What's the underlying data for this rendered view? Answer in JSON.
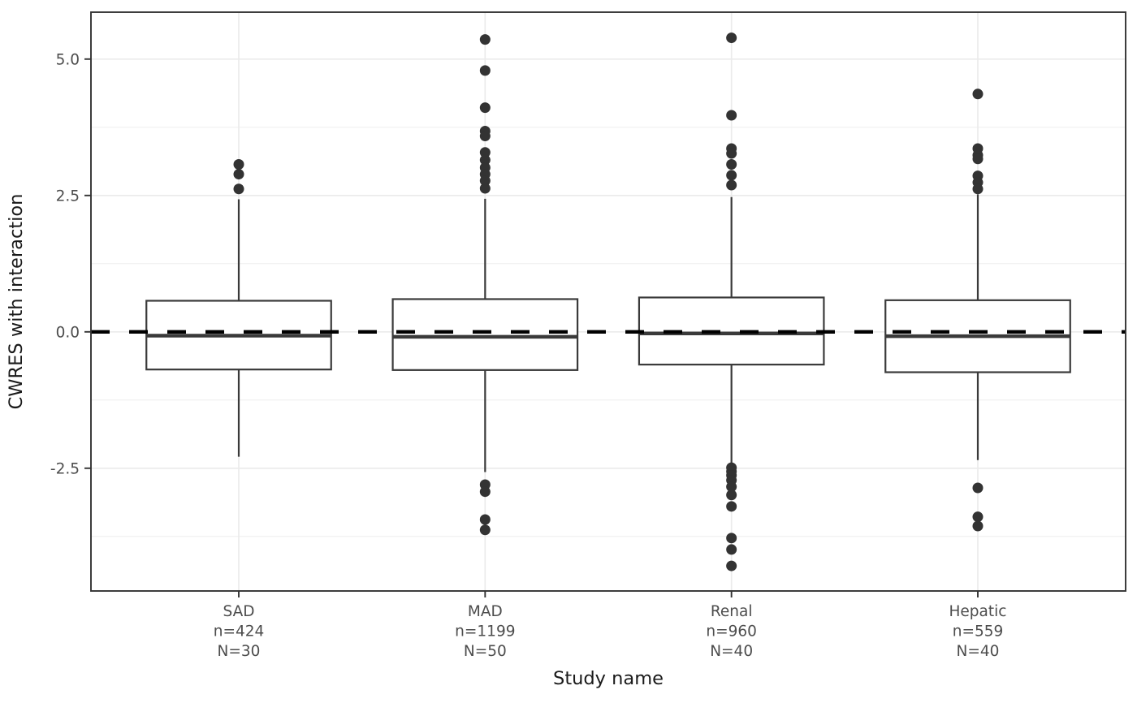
{
  "figure": {
    "background": "#ffffff"
  },
  "colors": {
    "panel_border": "#333333",
    "grid_major": "#ebebeb",
    "grid_minor": "#ebebeb",
    "box_stroke": "#3a3a3a",
    "box_fill": "#ffffff",
    "outlier": "#333333",
    "reference_line": "#000000",
    "tick_label": "#4d4d4d",
    "axis_title": "#1a1a1a",
    "tick_mark": "#333333"
  },
  "chart_data": {
    "type": "boxplot",
    "title": "",
    "xlabel": "Study name",
    "ylabel": "CWRES with interaction",
    "ylim": [
      -4.75,
      5.86
    ],
    "yticks": [
      {
        "value": 5.0,
        "label": "5.0"
      },
      {
        "value": 2.5,
        "label": "2.5"
      },
      {
        "value": 0.0,
        "label": "0.0"
      },
      {
        "value": -2.5,
        "label": "-2.5"
      }
    ],
    "yticks_minor": [
      3.75,
      1.25,
      -1.25,
      -3.75
    ],
    "grid": "on",
    "legend_position": "none",
    "reference_line": {
      "y": 0.0,
      "linetype": "dashed"
    },
    "categories": [
      "SAD",
      "MAD",
      "Renal",
      "Hepatic"
    ],
    "x_tick_labels": [
      {
        "lines": [
          "SAD",
          "n=424",
          "N=30"
        ]
      },
      {
        "lines": [
          "MAD",
          "n=1199",
          "N=50"
        ]
      },
      {
        "lines": [
          "Renal",
          "n=960",
          "N=40"
        ]
      },
      {
        "lines": [
          "Hepatic",
          "n=559",
          "N=40"
        ]
      }
    ],
    "series": [
      {
        "name": "SAD",
        "q1": -0.69,
        "median": -0.07,
        "q3": 0.57,
        "whisker_low": -2.29,
        "whisker_high": 2.43,
        "outliers_high": [
          3.07,
          2.89,
          2.62
        ],
        "outliers_low": []
      },
      {
        "name": "MAD",
        "q1": -0.7,
        "median": -0.09,
        "q3": 0.6,
        "whisker_low": -2.57,
        "whisker_high": 2.44,
        "outliers_high": [
          5.36,
          4.79,
          4.11,
          3.68,
          3.59,
          3.29,
          3.15,
          3.01,
          2.89,
          2.77,
          2.63
        ],
        "outliers_low": [
          -2.8,
          -2.93,
          -3.44,
          -3.63
        ]
      },
      {
        "name": "Renal",
        "q1": -0.6,
        "median": -0.03,
        "q3": 0.63,
        "whisker_low": -2.44,
        "whisker_high": 2.47,
        "outliers_high": [
          5.39,
          3.97,
          3.36,
          3.27,
          3.07,
          2.87,
          2.69
        ],
        "outliers_low": [
          -2.49,
          -2.56,
          -2.63,
          -2.72,
          -2.84,
          -2.99,
          -3.2,
          -3.78,
          -3.99,
          -4.29
        ]
      },
      {
        "name": "Hepatic",
        "q1": -0.74,
        "median": -0.08,
        "q3": 0.58,
        "whisker_low": -2.35,
        "whisker_high": 2.52,
        "outliers_high": [
          4.36,
          3.36,
          3.24,
          3.17,
          2.86,
          2.74,
          2.62
        ],
        "outliers_low": [
          -2.86,
          -3.39,
          -3.56
        ]
      }
    ]
  }
}
